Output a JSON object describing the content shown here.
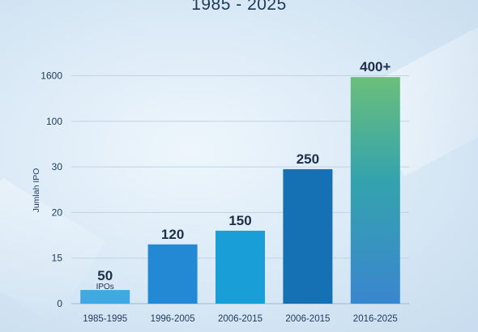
{
  "title": "1985 - 2025",
  "chart_data": {
    "type": "bar",
    "title": "1985 - 2025",
    "ylabel": "Jumlah IPO",
    "y_tick_labels": [
      "0",
      "15",
      "20",
      "30",
      "100",
      "1600"
    ],
    "categories": [
      "1985-1995",
      "1996-2005",
      "2006-2015",
      "2006-2015",
      "2016-2025"
    ],
    "values": [
      50,
      120,
      150,
      250,
      400
    ],
    "bar_tick_level": [
      0.3,
      1.3,
      1.6,
      2.95,
      4.97
    ],
    "data_labels": [
      "50",
      "120",
      "150",
      "250",
      "400+"
    ],
    "sub_label": "IPOs",
    "grid": true,
    "colors": [
      "#3fa9e0",
      "#2489d4",
      "#1a9ed8",
      "#1670b4",
      "gradient:#6bbf7a-#3a86cf"
    ]
  }
}
